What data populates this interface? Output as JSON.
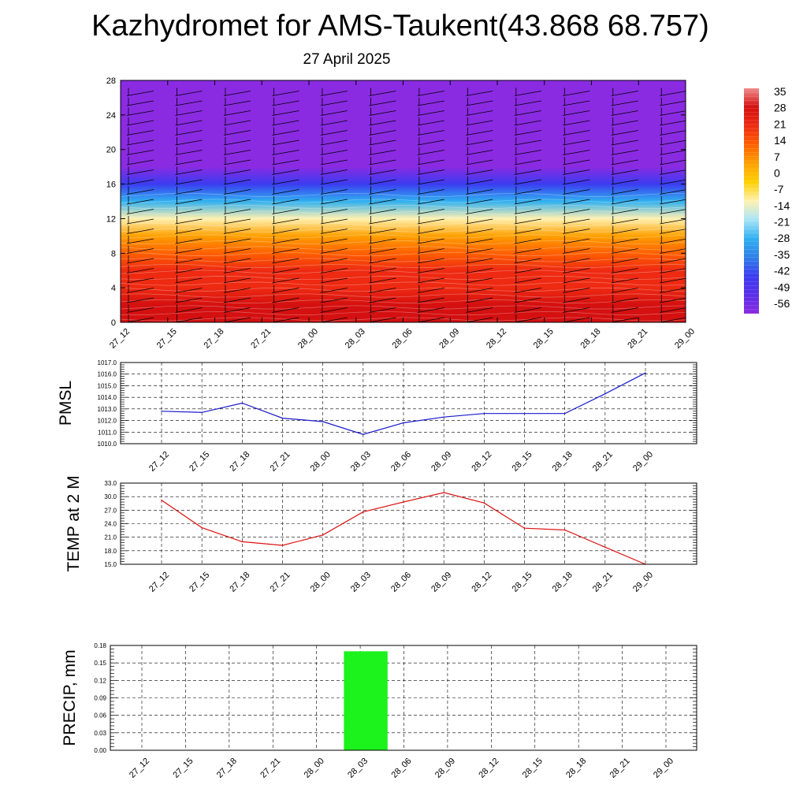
{
  "header": {
    "title": "Kazhydromet for AMS-Taukent(43.868 68.757)",
    "subtitle": "27 April 2025"
  },
  "colors": {
    "pmsl_line": "#1a1acc",
    "temp_line": "#dd1111",
    "precip_bar": "#1cf21c"
  },
  "time_labels": [
    "27_12",
    "27_15",
    "27_18",
    "27_21",
    "28_00",
    "28_03",
    "28_06",
    "28_09",
    "28_12",
    "28_15",
    "28_18",
    "28_21",
    "29_00"
  ],
  "chart_data": [
    {
      "type": "heatmap",
      "title": "Kazhydromet for AMS-Taukent(43.868 68.757)",
      "subtitle": "27 April 2025",
      "x": [
        "27_12",
        "27_15",
        "27_18",
        "27_21",
        "28_00",
        "28_03",
        "28_06",
        "28_09",
        "28_12",
        "28_15",
        "28_18",
        "28_21",
        "29_00"
      ],
      "yticks": [
        0,
        4,
        8,
        12,
        16,
        20,
        24,
        28
      ],
      "ylim": [
        0,
        28
      ],
      "temperature_profile": [
        {
          "y": 0,
          "t": 33
        },
        {
          "y": 2,
          "t": 28
        },
        {
          "y": 4,
          "t": 24
        },
        {
          "y": 6,
          "t": 20
        },
        {
          "y": 8,
          "t": 14
        },
        {
          "y": 10,
          "t": 3
        },
        {
          "y": 12,
          "t": -12
        },
        {
          "y": 14,
          "t": -25
        },
        {
          "y": 16,
          "t": -40
        },
        {
          "y": 18,
          "t": -56
        },
        {
          "y": 20,
          "t": -56
        },
        {
          "y": 24,
          "t": -56
        },
        {
          "y": 28,
          "t": -56
        }
      ],
      "colorbar": {
        "labels": [
          "35",
          "28",
          "21",
          "14",
          "7",
          "0",
          "-7",
          "-14",
          "-21",
          "-28",
          "-35",
          "-42",
          "-49",
          "-56"
        ],
        "stops": [
          "#8a2be2",
          "#5a2ee8",
          "#3b3cf0",
          "#2f7fe8",
          "#30b0f0",
          "#a8e4f8",
          "#fff1b0",
          "#ffd000",
          "#ffa000",
          "#ff6000",
          "#ee2a12",
          "#d41010",
          "#f08c8c"
        ]
      },
      "wind_barbs": true
    },
    {
      "type": "line",
      "ylabel": "PMSL",
      "x": [
        "27_12",
        "27_15",
        "27_18",
        "27_21",
        "28_00",
        "28_03",
        "28_06",
        "28_09",
        "28_12",
        "28_15",
        "28_18",
        "28_21",
        "29_00"
      ],
      "values": [
        1012.8,
        1012.7,
        1013.5,
        1012.2,
        1011.9,
        1010.8,
        1011.8,
        1012.3,
        1012.6,
        1012.6,
        1012.6,
        1014.3,
        1016.1
      ],
      "ylim": [
        1010.0,
        1017.0
      ],
      "yticks": [
        "1010.0",
        "1011.0",
        "1012.0",
        "1013.0",
        "1014.0",
        "1015.0",
        "1016.0",
        "1017.0"
      ],
      "grid": true
    },
    {
      "type": "line",
      "ylabel": "TEMP at 2 M",
      "x": [
        "27_12",
        "27_15",
        "27_18",
        "27_21",
        "28_00",
        "28_03",
        "28_06",
        "28_09",
        "28_12",
        "28_15",
        "28_18",
        "28_21",
        "29_00"
      ],
      "values": [
        29.2,
        23.1,
        20.0,
        19.2,
        21.5,
        26.6,
        28.8,
        30.9,
        28.6,
        23.0,
        22.6,
        18.8,
        15.0
      ],
      "ylim": [
        15.0,
        33.0
      ],
      "yticks": [
        "15.0",
        "18.0",
        "21.0",
        "24.0",
        "27.0",
        "30.0",
        "33.0"
      ],
      "grid": true
    },
    {
      "type": "bar",
      "ylabel": "PRECIP, mm",
      "categories": [
        "27_12",
        "27_15",
        "27_18",
        "27_21",
        "28_00",
        "28_03",
        "28_06",
        "28_09",
        "28_12",
        "28_15",
        "28_18",
        "28_21",
        "29_00"
      ],
      "values": [
        0,
        0,
        0,
        0,
        0,
        0.17,
        0,
        0,
        0,
        0,
        0,
        0,
        0
      ],
      "ylim": [
        0.0,
        0.18
      ],
      "yticks": [
        "0.00",
        "0.03",
        "0.06",
        "0.09",
        "0.12",
        "0.15",
        "0.18"
      ],
      "grid": true
    }
  ]
}
